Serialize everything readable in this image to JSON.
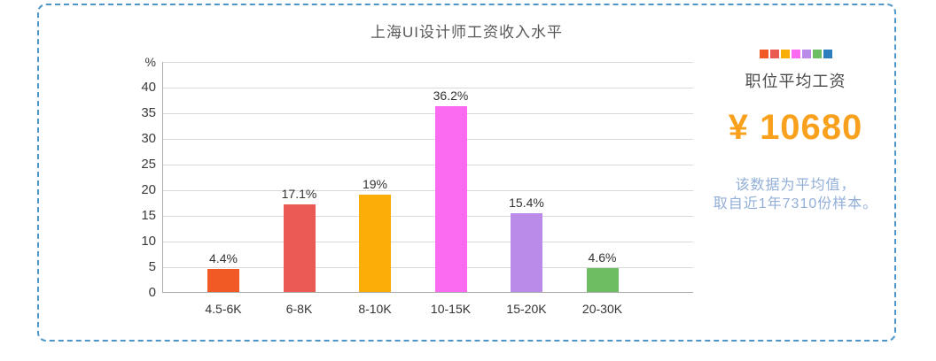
{
  "frame": {
    "border_color": "#4E96C8"
  },
  "chart_data": {
    "type": "bar",
    "title": "上海UI设计师工资收入水平",
    "unit_label": "%",
    "categories": [
      "4.5-6K",
      "6-8K",
      "8-10K",
      "10-15K",
      "15-20K",
      "20-30K"
    ],
    "values": [
      4.4,
      17.1,
      19,
      36.2,
      15.4,
      4.6
    ],
    "value_labels": [
      "4.4%",
      "17.1%",
      "19%",
      "36.2%",
      "15.4%",
      "4.6%"
    ],
    "bar_colors": [
      "#F15A24",
      "#EA5A52",
      "#FBAE08",
      "#FA6BF2",
      "#BA8BE8",
      "#6DBD63"
    ],
    "xlabel": "",
    "ylabel": "%",
    "ylim": [
      0,
      45
    ],
    "yticks": [
      0,
      5,
      10,
      15,
      20,
      25,
      30,
      35,
      40
    ],
    "grid": true,
    "legend_position": "none"
  },
  "summary_panel": {
    "swatch_colors": [
      "#F15A24",
      "#EA5A52",
      "#FBAE08",
      "#FA6BF2",
      "#BA8BE8",
      "#6DBD63",
      "#2E7EBF"
    ],
    "label": "职位平均工资",
    "amount": "¥ 10680",
    "amount_color": "#F9A11C",
    "note_line1": "该数据为平均值，",
    "note_line2": "取自近1年7310份样本。",
    "note_color": "#92AFD7"
  }
}
